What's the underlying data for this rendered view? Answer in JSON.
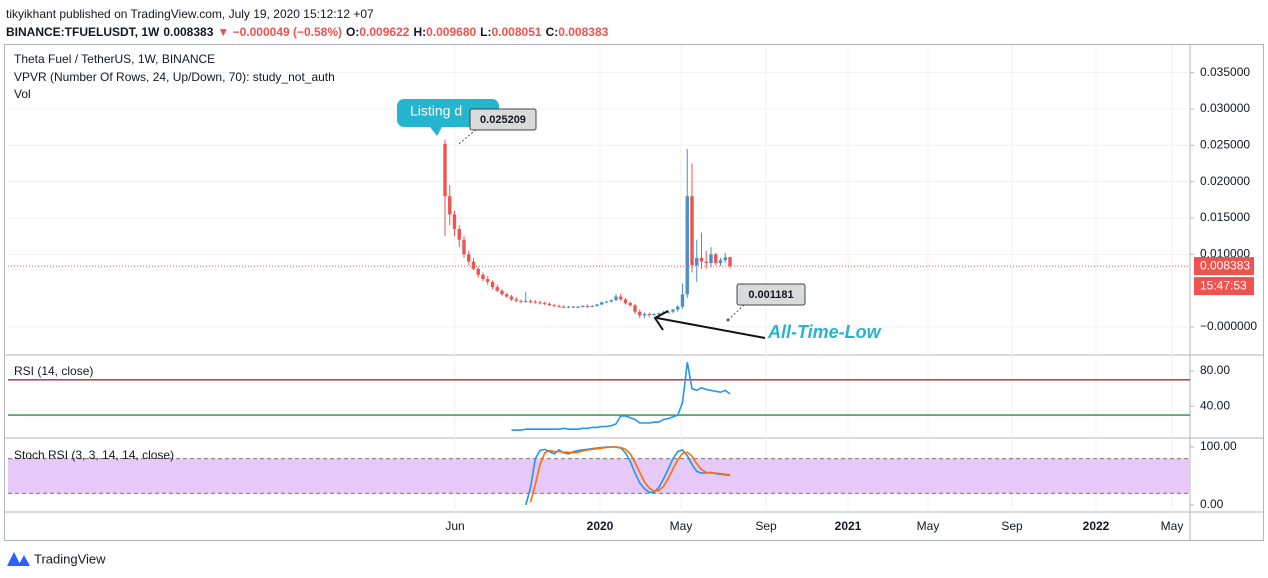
{
  "header": {
    "byline": "tikyikhant published on TradingView.com, July 19, 2020 15:12:12 +07",
    "quote": [
      {
        "text": "BINANCE:TFUELUSDT, 1W",
        "color": "#131722"
      },
      {
        "text": "0.008383",
        "color": "#131722"
      },
      {
        "text": "▼ −0.000049 (−0.58%)",
        "color": "#ef5350"
      },
      {
        "text": "O:",
        "color": "#131722"
      },
      {
        "text": "0.009622",
        "color": "#ef5350"
      },
      {
        "text": "H:",
        "color": "#131722"
      },
      {
        "text": "0.009680",
        "color": "#ef5350"
      },
      {
        "text": "L:",
        "color": "#131722"
      },
      {
        "text": "0.008051",
        "color": "#ef5350"
      },
      {
        "text": "C:",
        "color": "#131722"
      },
      {
        "text": "0.008383",
        "color": "#ef5350"
      }
    ]
  },
  "footer": {
    "brand": "TradingView"
  },
  "chart_data": [
    {
      "type": "candlestick",
      "title": "Theta Fuel / TetherUS, 1W, BINANCE",
      "subtitles": [
        "VPVR (Number Of Rows, 24, Up/Down, 70): study_not_auth",
        "Vol"
      ],
      "up_color": "#4a90c8",
      "down_color": "#ef5350",
      "open": [
        0.0252,
        0.018,
        0.0155,
        0.0135,
        0.012,
        0.01,
        0.009,
        0.008,
        0.0072,
        0.0066,
        0.0062,
        0.0055,
        0.005,
        0.0045,
        0.0042,
        0.0038,
        0.0036,
        0.0035,
        0.0036,
        0.0035,
        0.0034,
        0.0033,
        0.0032,
        0.003,
        0.0029,
        0.0028,
        0.0027,
        0.0028,
        0.0027,
        0.0028,
        0.0029,
        0.0028,
        0.0029,
        0.0031,
        0.0034,
        0.0035,
        0.0037,
        0.0042,
        0.0038,
        0.0033,
        0.003,
        0.0021,
        0.0016,
        0.0018,
        0.0017,
        0.0018,
        0.0019,
        0.002,
        0.0021,
        0.0024,
        0.0028,
        0.0045,
        0.018,
        0.0085,
        0.0095,
        0.009,
        0.0088,
        0.01,
        0.0088,
        0.0092,
        0.009622
      ],
      "high": [
        0.0258,
        0.0195,
        0.016,
        0.014,
        0.0125,
        0.0105,
        0.0095,
        0.0083,
        0.0075,
        0.007,
        0.0064,
        0.0058,
        0.0052,
        0.0047,
        0.0044,
        0.0041,
        0.0038,
        0.0048,
        0.0038,
        0.0037,
        0.0036,
        0.0035,
        0.0034,
        0.0032,
        0.0031,
        0.003,
        0.0029,
        0.0029,
        0.0029,
        0.003,
        0.0031,
        0.003,
        0.0032,
        0.0035,
        0.0036,
        0.0038,
        0.0045,
        0.0046,
        0.004,
        0.0035,
        0.0032,
        0.0024,
        0.002,
        0.002,
        0.0019,
        0.002,
        0.0022,
        0.0023,
        0.0025,
        0.003,
        0.006,
        0.0245,
        0.0225,
        0.012,
        0.013,
        0.0105,
        0.011,
        0.0102,
        0.0095,
        0.0102,
        0.00968
      ],
      "low": [
        0.0125,
        0.014,
        0.0125,
        0.011,
        0.0095,
        0.0085,
        0.0078,
        0.0068,
        0.0063,
        0.0058,
        0.0052,
        0.0048,
        0.0043,
        0.004,
        0.0036,
        0.0034,
        0.0033,
        0.0033,
        0.0033,
        0.0032,
        0.0031,
        0.003,
        0.0029,
        0.0028,
        0.0027,
        0.0026,
        0.0026,
        0.0026,
        0.0026,
        0.0027,
        0.0027,
        0.0027,
        0.0028,
        0.003,
        0.0033,
        0.0034,
        0.0036,
        0.0036,
        0.0031,
        0.0028,
        0.0018,
        0.0012,
        0.0012,
        0.0014,
        0.0015,
        0.0016,
        0.0017,
        0.0018,
        0.0019,
        0.0021,
        0.0025,
        0.004,
        0.0075,
        0.0062,
        0.008,
        0.008,
        0.0082,
        0.0085,
        0.0084,
        0.0088,
        0.008051
      ],
      "close": [
        0.018,
        0.0155,
        0.0135,
        0.012,
        0.01,
        0.009,
        0.008,
        0.0072,
        0.0066,
        0.0062,
        0.0055,
        0.005,
        0.0045,
        0.0042,
        0.0038,
        0.0036,
        0.0035,
        0.0036,
        0.0035,
        0.0034,
        0.0033,
        0.0032,
        0.003,
        0.0029,
        0.0028,
        0.0027,
        0.0028,
        0.0027,
        0.0028,
        0.0029,
        0.0028,
        0.0029,
        0.0031,
        0.0034,
        0.0035,
        0.0037,
        0.0042,
        0.0038,
        0.0033,
        0.003,
        0.0021,
        0.0016,
        0.0018,
        0.0017,
        0.0018,
        0.0019,
        0.002,
        0.0021,
        0.0024,
        0.0028,
        0.0045,
        0.018,
        0.0085,
        0.0095,
        0.009,
        0.0088,
        0.01,
        0.0088,
        0.0092,
        0.0096,
        0.008383
      ],
      "ylim": [
        -0.00385,
        0.0388
      ],
      "yticks": [
        {
          "value": 0.035,
          "label": "0.035000"
        },
        {
          "value": 0.03,
          "label": "0.030000"
        },
        {
          "value": 0.025,
          "label": "0.025000"
        },
        {
          "value": 0.02,
          "label": "0.020000"
        },
        {
          "value": 0.015,
          "label": "0.015000"
        },
        {
          "value": 0.01,
          "label": "0.010000"
        },
        {
          "value": 0,
          "label": "−0.000000"
        }
      ],
      "x_labels": [
        "Jun",
        "2020",
        "May",
        "Sep",
        "2021",
        "May",
        "Sep",
        "2022",
        "May"
      ],
      "grid": true,
      "last_price": {
        "value": 0.008383,
        "label": "0.008383"
      },
      "countdown": "15:47:53",
      "annotations": {
        "callout": "Listing d",
        "high": {
          "value": 0.025209,
          "label": "0.025209"
        },
        "low": {
          "value": 0.001181,
          "label": "0.001181"
        },
        "low_note": "All-Time-Low"
      }
    },
    {
      "type": "line",
      "title": "RSI (14, close)",
      "color": "#2196f3",
      "ylim": [
        4,
        97
      ],
      "yticks": [
        {
          "value": 80,
          "label": "80.00"
        },
        {
          "value": 40,
          "label": "40.00"
        }
      ],
      "levels": [
        70,
        30
      ],
      "level_colors": [
        "#b22833",
        "#2e8b3a"
      ],
      "values": [
        null,
        null,
        null,
        null,
        null,
        null,
        null,
        null,
        null,
        null,
        null,
        null,
        null,
        null,
        13,
        13,
        13,
        14,
        14,
        14,
        14,
        14,
        14,
        14,
        14,
        15,
        14,
        14,
        14,
        15,
        15,
        16,
        16,
        17,
        17,
        18,
        20,
        29,
        29,
        27,
        25,
        21,
        21,
        21,
        22,
        22,
        25,
        26,
        28,
        30,
        44,
        90,
        60,
        58,
        61,
        59,
        58,
        57,
        56,
        58,
        54
      ]
    },
    {
      "type": "line",
      "title": "Stoch RSI (3, 3, 14, 14, close)",
      "ylim": [
        -12,
        112
      ],
      "yticks": [
        {
          "value": 100,
          "label": "100.00"
        },
        {
          "value": 0,
          "label": "0.00"
        }
      ],
      "levels": [
        80,
        20
      ],
      "band_color": "#e6c9f7",
      "series": [
        {
          "color": "#2196f3",
          "values": [
            null,
            null,
            null,
            null,
            null,
            null,
            null,
            null,
            null,
            null,
            null,
            null,
            null,
            null,
            null,
            null,
            null,
            0,
            30,
            80,
            94,
            96,
            92,
            88,
            95,
            90,
            88,
            92,
            94,
            95,
            96,
            97,
            98,
            99,
            100,
            100,
            100,
            98,
            90,
            75,
            55,
            38,
            28,
            22,
            22,
            30,
            45,
            62,
            80,
            92,
            95,
            85,
            70,
            58,
            55,
            55,
            56,
            54,
            53,
            52,
            51
          ]
        },
        {
          "color": "#ff6d00",
          "values": [
            null,
            null,
            null,
            null,
            null,
            null,
            null,
            null,
            null,
            null,
            null,
            null,
            null,
            null,
            null,
            null,
            null,
            null,
            5,
            35,
            70,
            90,
            94,
            92,
            92,
            91,
            91,
            90,
            91,
            93,
            95,
            96,
            97,
            98,
            99,
            100,
            100,
            99,
            96,
            88,
            73,
            56,
            40,
            29,
            24,
            25,
            32,
            46,
            62,
            78,
            89,
            91,
            84,
            71,
            61,
            56,
            55,
            55,
            54,
            53,
            52
          ]
        }
      ]
    }
  ]
}
